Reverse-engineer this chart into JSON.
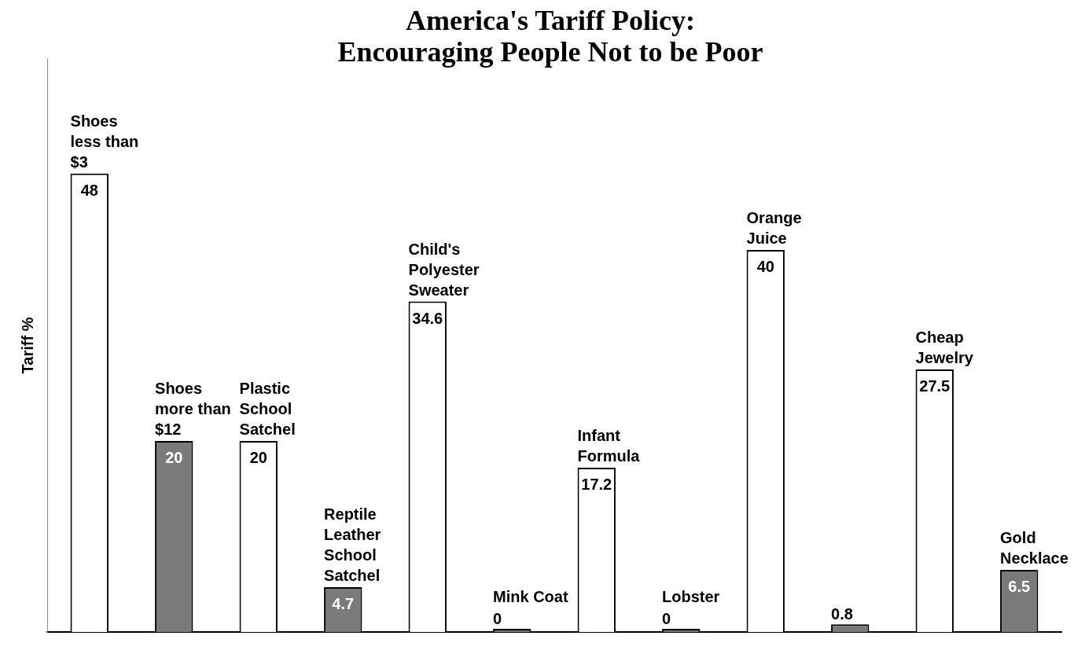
{
  "chart_data": {
    "type": "bar",
    "title": "America's Tariff Policy:",
    "subtitle": "Encouraging People Not to be Poor",
    "ylabel": "Tariff %",
    "categories": [
      "Shoes less than $3",
      "Shoes more than $12",
      "Plastic School Satchel",
      "Reptile Leather School Satchel",
      "Child's Polyester Sweater",
      "Mink Coat",
      "Infant Formula",
      "Lobster",
      "Orange Juice",
      null,
      "Cheap Jewelry",
      "Gold Necklace"
    ],
    "values": [
      48,
      20,
      20,
      4.7,
      34.6,
      0,
      17.2,
      0,
      40,
      0.8,
      27.5,
      6.5
    ],
    "colors": [
      "#ffffff",
      "#7a7a7a",
      "#ffffff",
      "#7a7a7a",
      "#ffffff",
      "#7a7a7a",
      "#ffffff",
      "#7a7a7a",
      "#ffffff",
      "#7a7a7a",
      "#ffffff",
      "#7a7a7a"
    ],
    "data_labels": true,
    "grid": false,
    "legend": false
  }
}
